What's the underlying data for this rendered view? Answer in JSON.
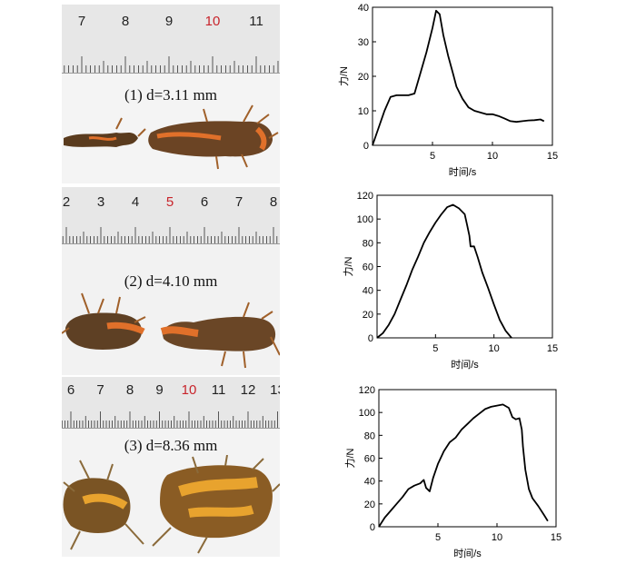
{
  "samples": [
    {
      "caption": "(1) d=3.11 mm",
      "ruler_numbers": [
        "7",
        "8",
        "9",
        "10",
        "11"
      ],
      "red_number": "10"
    },
    {
      "caption": "(2) d=4.10 mm",
      "ruler_numbers": [
        "2",
        "3",
        "4",
        "5",
        "6",
        "7",
        "8"
      ],
      "red_number": "5"
    },
    {
      "caption": "(3) d=8.36 mm",
      "ruler_numbers": [
        "6",
        "7",
        "8",
        "9",
        "10",
        "11",
        "12",
        "13"
      ],
      "red_number": "10"
    }
  ],
  "colors": {
    "root_dark": "#5a3b1e",
    "root_orange": "#e0702a",
    "root_yellow": "#e8a32e",
    "line": "#000000"
  },
  "chart_data": [
    {
      "type": "line",
      "xlabel": "时间/s",
      "ylabel": "力/N",
      "xlim": [
        0,
        15
      ],
      "ylim": [
        0,
        40
      ],
      "xticks": [
        "5",
        "10",
        "15"
      ],
      "yticks": [
        "0",
        "10",
        "20",
        "30",
        "40"
      ],
      "series": [
        {
          "x": [
            0,
            0.5,
            1.0,
            1.5,
            2.0,
            3.0,
            3.5,
            4.0,
            4.5,
            5.0,
            5.3,
            5.6,
            5.9,
            6.3,
            6.7,
            7.0,
            7.5,
            8.0,
            8.5,
            9.0,
            9.5,
            10.0,
            10.5,
            11.0,
            11.5,
            12.0,
            12.5,
            13.0,
            13.5,
            14.0,
            14.3
          ],
          "y": [
            0,
            5,
            10,
            14,
            14.5,
            14.5,
            15,
            21,
            27,
            34,
            39,
            38,
            32,
            26,
            21,
            17,
            13.5,
            11,
            10,
            9.5,
            9,
            9,
            8.5,
            7.8,
            7,
            6.8,
            7,
            7.2,
            7.3,
            7.5,
            7
          ]
        }
      ]
    },
    {
      "type": "line",
      "xlabel": "时间/s",
      "ylabel": "力/N",
      "xlim": [
        0,
        15
      ],
      "ylim": [
        0,
        120
      ],
      "xticks": [
        "5",
        "10",
        "15"
      ],
      "yticks": [
        "0",
        "20",
        "40",
        "60",
        "80",
        "100",
        "120"
      ],
      "series": [
        {
          "x": [
            0,
            0.5,
            1.0,
            1.5,
            2.0,
            2.5,
            3.0,
            3.5,
            4.0,
            4.5,
            5.0,
            5.5,
            6.0,
            6.5,
            7.0,
            7.5,
            7.7,
            7.9,
            8.0,
            8.3,
            8.6,
            9.0,
            9.5,
            10.0,
            10.5,
            11.0,
            11.5
          ],
          "y": [
            0,
            4,
            11,
            20,
            32,
            44,
            57,
            68,
            80,
            89,
            97,
            104,
            110,
            112,
            109,
            104,
            95,
            86,
            77,
            77,
            68,
            55,
            42,
            28,
            15,
            6,
            0
          ]
        }
      ]
    },
    {
      "type": "line",
      "xlabel": "时间/s",
      "ylabel": "力/N",
      "xlim": [
        0,
        15
      ],
      "ylim": [
        0,
        120
      ],
      "xticks": [
        "5",
        "10",
        "15"
      ],
      "yticks": [
        "0",
        "20",
        "40",
        "60",
        "80",
        "100",
        "120"
      ],
      "series": [
        {
          "x": [
            0,
            0.5,
            1.0,
            1.5,
            2.0,
            2.5,
            3.0,
            3.5,
            3.8,
            4.0,
            4.3,
            4.6,
            5.0,
            5.5,
            6.0,
            6.5,
            7.0,
            7.5,
            8.0,
            8.5,
            9.0,
            9.5,
            10.0,
            10.5,
            11.0,
            11.3,
            11.6,
            11.9,
            12.1,
            12.2,
            12.4,
            12.7,
            13.0,
            13.5,
            14.0,
            14.3
          ],
          "y": [
            0,
            8,
            14,
            20,
            26,
            33,
            36,
            38,
            41,
            34,
            31,
            43,
            55,
            66,
            74,
            78,
            85,
            90,
            95,
            99,
            103,
            105,
            106,
            107,
            104,
            96,
            94,
            95,
            85,
            70,
            50,
            33,
            25,
            18,
            10,
            5
          ]
        }
      ]
    }
  ]
}
